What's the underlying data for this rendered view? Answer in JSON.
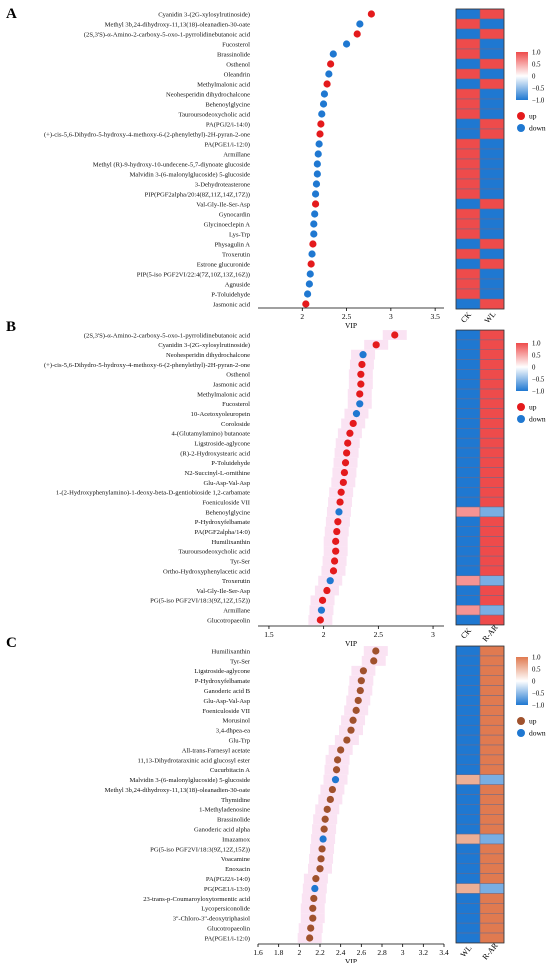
{
  "chart_data": [
    {
      "type": "scatter",
      "panel_label": "A",
      "xlabel": "VIP",
      "xlim": [
        1.5,
        3.6
      ],
      "xticks": [
        2,
        2.5,
        3,
        3.5
      ],
      "heat_columns": [
        "CK",
        "WL"
      ],
      "legend_labels": [
        "up",
        "down"
      ],
      "up_color": "#e41a1c",
      "down_color": "#1f78d1",
      "highlight": false,
      "colorbar": {
        "ticks": [
          "1.0",
          "0.5",
          "0",
          "−0.5",
          "−1.0"
        ],
        "top": "#ee4b4b",
        "mid": "#ffffff",
        "bottom": "#1f78d1"
      },
      "points": [
        {
          "name": "Cyanidin 3-(2G-xylosylrutinoside)",
          "vip": 2.78,
          "dir": "up",
          "heat": [
            -1,
            1
          ]
        },
        {
          "name": "Methyl 3b,24-dihydroxy-11,13(18)-oleanadien-30-oate",
          "vip": 2.65,
          "dir": "down",
          "heat": [
            1,
            -1
          ]
        },
        {
          "name": "(2S,3'S)-α-Amino-2-carboxy-5-oxo-1-pyrrolidinebutanoic acid",
          "vip": 2.62,
          "dir": "up",
          "heat": [
            -1,
            1
          ]
        },
        {
          "name": "Fucosterol",
          "vip": 2.5,
          "dir": "down",
          "heat": [
            1,
            -1
          ]
        },
        {
          "name": "Brassinolide",
          "vip": 2.35,
          "dir": "down",
          "heat": [
            1,
            -1
          ]
        },
        {
          "name": "Osthenol",
          "vip": 2.32,
          "dir": "up",
          "heat": [
            -1,
            1
          ]
        },
        {
          "name": "Oleandrin",
          "vip": 2.3,
          "dir": "down",
          "heat": [
            1,
            -1
          ]
        },
        {
          "name": "Methylmalonic acid",
          "vip": 2.28,
          "dir": "up",
          "heat": [
            -1,
            1
          ]
        },
        {
          "name": "Neohesperidin dihydrochalcone",
          "vip": 2.25,
          "dir": "down",
          "heat": [
            1,
            -1
          ]
        },
        {
          "name": "Behenoylglycine",
          "vip": 2.24,
          "dir": "down",
          "heat": [
            1,
            -1
          ]
        },
        {
          "name": "Tauroursodeoxycholic acid",
          "vip": 2.22,
          "dir": "down",
          "heat": [
            1,
            -1
          ]
        },
        {
          "name": "PA(PGJ2/i-14:0)",
          "vip": 2.21,
          "dir": "up",
          "heat": [
            -1,
            1
          ]
        },
        {
          "name": "(+)-cis-5,6-Dihydro-5-hydroxy-4-methoxy-6-(2-phenylethyl)-2H-pyran-2-one",
          "vip": 2.2,
          "dir": "up",
          "heat": [
            -1,
            1
          ]
        },
        {
          "name": "PA(PGE1/i-12:0)",
          "vip": 2.19,
          "dir": "down",
          "heat": [
            1,
            -1
          ]
        },
        {
          "name": "Armillane",
          "vip": 2.18,
          "dir": "down",
          "heat": [
            1,
            -1
          ]
        },
        {
          "name": "Methyl (R)-9-hydroxy-10-undecene-5,7-diynoate glucoside",
          "vip": 2.17,
          "dir": "down",
          "heat": [
            1,
            -1
          ]
        },
        {
          "name": "Malvidin 3-(6-malonylglucoside) 5-glucoside",
          "vip": 2.17,
          "dir": "down",
          "heat": [
            1,
            -1
          ]
        },
        {
          "name": "3-Dehydroteasterone",
          "vip": 2.16,
          "dir": "down",
          "heat": [
            1,
            -1
          ]
        },
        {
          "name": "PIP(PGF2alpha/20:4(8Z,11Z,14Z,17Z))",
          "vip": 2.15,
          "dir": "down",
          "heat": [
            1,
            -1
          ]
        },
        {
          "name": "Val-Gly-Ile-Ser-Asp",
          "vip": 2.15,
          "dir": "up",
          "heat": [
            -1,
            1
          ]
        },
        {
          "name": "Gynocardin",
          "vip": 2.14,
          "dir": "down",
          "heat": [
            1,
            -1
          ]
        },
        {
          "name": "Glycinoeclepin A",
          "vip": 2.13,
          "dir": "down",
          "heat": [
            1,
            -1
          ]
        },
        {
          "name": "Lys-Trp",
          "vip": 2.13,
          "dir": "down",
          "heat": [
            1,
            -1
          ]
        },
        {
          "name": "Physagulin A",
          "vip": 2.12,
          "dir": "up",
          "heat": [
            -1,
            1
          ]
        },
        {
          "name": "Troxerutin",
          "vip": 2.11,
          "dir": "down",
          "heat": [
            1,
            -1
          ]
        },
        {
          "name": "Estrone glucuronide",
          "vip": 2.1,
          "dir": "up",
          "heat": [
            -1,
            1
          ]
        },
        {
          "name": "PIP(5-iso PGF2VI/22:4(7Z,10Z,13Z,16Z))",
          "vip": 2.09,
          "dir": "down",
          "heat": [
            1,
            -1
          ]
        },
        {
          "name": "Agnuside",
          "vip": 2.08,
          "dir": "down",
          "heat": [
            1,
            -1
          ]
        },
        {
          "name": "P-Toluidehyde",
          "vip": 2.06,
          "dir": "down",
          "heat": [
            1,
            -1
          ]
        },
        {
          "name": "Jasmonic acid",
          "vip": 2.04,
          "dir": "up",
          "heat": [
            -1,
            1
          ]
        }
      ]
    },
    {
      "type": "scatter",
      "panel_label": "B",
      "xlabel": "VIP",
      "xlim": [
        1.4,
        3.1
      ],
      "xticks": [
        1.5,
        2,
        2.5,
        3
      ],
      "heat_columns": [
        "CK",
        "R-AR"
      ],
      "legend_labels": [
        "up",
        "down"
      ],
      "up_color": "#e41a1c",
      "down_color": "#1f78d1",
      "highlight": true,
      "colorbar": {
        "ticks": [
          "1.0",
          "0.5",
          "0",
          "−0.5",
          "−1.0"
        ],
        "top": "#ee4b4b",
        "mid": "#ffffff",
        "bottom": "#1f78d1"
      },
      "points": [
        {
          "name": "(2S,3'S)-α-Amino-2-carboxy-5-oxo-1-pyrrolidinebutanoic acid",
          "vip": 2.65,
          "dir": "up",
          "heat": [
            -1,
            1
          ]
        },
        {
          "name": "Cyanidin 3-(2G-xylosylrutinoside)",
          "vip": 2.48,
          "dir": "up",
          "heat": [
            -1,
            1
          ]
        },
        {
          "name": "Neohesperidin dihydrochalcone",
          "vip": 2.36,
          "dir": "down",
          "heat": [
            -1,
            1
          ]
        },
        {
          "name": "(+)-cis-5,6-Dihydro-5-hydroxy-4-methoxy-6-(2-phenylethyl)-2H-pyran-2-one",
          "vip": 2.35,
          "dir": "up",
          "heat": [
            -1,
            1
          ]
        },
        {
          "name": "Osthenol",
          "vip": 2.34,
          "dir": "up",
          "heat": [
            -1,
            1
          ]
        },
        {
          "name": "Jasmonic acid",
          "vip": 2.34,
          "dir": "up",
          "heat": [
            -1,
            1
          ]
        },
        {
          "name": "Methylmalonic acid",
          "vip": 2.33,
          "dir": "up",
          "heat": [
            -1,
            1
          ]
        },
        {
          "name": "Fucosterol",
          "vip": 2.33,
          "dir": "down",
          "heat": [
            -1,
            1
          ]
        },
        {
          "name": "10-Acetoxyoleuropein",
          "vip": 2.3,
          "dir": "down",
          "heat": [
            -1,
            1
          ]
        },
        {
          "name": "Coroloside",
          "vip": 2.27,
          "dir": "up",
          "heat": [
            -1,
            1
          ]
        },
        {
          "name": "4-(Glutamylamino) butanoate",
          "vip": 2.24,
          "dir": "up",
          "heat": [
            -1,
            1
          ]
        },
        {
          "name": "Ligstroside-aglycone",
          "vip": 2.22,
          "dir": "up",
          "heat": [
            -1,
            1
          ]
        },
        {
          "name": "(R)-2-Hydroxystearic acid",
          "vip": 2.21,
          "dir": "up",
          "heat": [
            -1,
            1
          ]
        },
        {
          "name": "P-Toluidehyde",
          "vip": 2.2,
          "dir": "up",
          "heat": [
            -1,
            1
          ]
        },
        {
          "name": "N2-Succinyl-L-ornithine",
          "vip": 2.19,
          "dir": "up",
          "heat": [
            -1,
            1
          ]
        },
        {
          "name": "Glu-Asp-Val-Asp",
          "vip": 2.18,
          "dir": "up",
          "heat": [
            -1,
            1
          ]
        },
        {
          "name": "1-(2-Hydroxyphenylamino)-1-deoxy-beta-D-gentiobioside 1,2-carbamate",
          "vip": 2.16,
          "dir": "up",
          "heat": [
            -1,
            1
          ]
        },
        {
          "name": "Foeniculoside VII",
          "vip": 2.15,
          "dir": "up",
          "heat": [
            -1,
            1
          ]
        },
        {
          "name": "Behenoylglycine",
          "vip": 2.14,
          "dir": "down",
          "heat": [
            0.6,
            -0.6
          ]
        },
        {
          "name": "P-Hydroxyfelbamate",
          "vip": 2.13,
          "dir": "up",
          "heat": [
            -1,
            1
          ]
        },
        {
          "name": "PA(PGF2alpha/14:0)",
          "vip": 2.12,
          "dir": "up",
          "heat": [
            -1,
            1
          ]
        },
        {
          "name": "Humilixanthin",
          "vip": 2.11,
          "dir": "up",
          "heat": [
            -1,
            1
          ]
        },
        {
          "name": "Tauroursodeoxycholic acid",
          "vip": 2.11,
          "dir": "up",
          "heat": [
            -1,
            1
          ]
        },
        {
          "name": "Tyr-Ser",
          "vip": 2.1,
          "dir": "up",
          "heat": [
            -1,
            1
          ]
        },
        {
          "name": "Ortho-Hydroxyphenylacetic acid",
          "vip": 2.09,
          "dir": "up",
          "heat": [
            -1,
            1
          ]
        },
        {
          "name": "Troxerutin",
          "vip": 2.06,
          "dir": "down",
          "heat": [
            0.6,
            -0.6
          ]
        },
        {
          "name": "Val-Gly-Ile-Ser-Asp",
          "vip": 2.03,
          "dir": "up",
          "heat": [
            -1,
            1
          ]
        },
        {
          "name": "PG(5-iso PGF2VI/18:3(9Z,12Z,15Z))",
          "vip": 1.99,
          "dir": "up",
          "heat": [
            -1,
            1
          ]
        },
        {
          "name": "Armillane",
          "vip": 1.98,
          "dir": "down",
          "heat": [
            0.6,
            -0.6
          ]
        },
        {
          "name": "Glucotropaeolin",
          "vip": 1.97,
          "dir": "up",
          "heat": [
            -1,
            1
          ]
        }
      ]
    },
    {
      "type": "scatter",
      "panel_label": "C",
      "xlabel": "VIP",
      "xlim": [
        1.6,
        3.4
      ],
      "xticks": [
        1.6,
        1.8,
        2.0,
        2.2,
        2.4,
        2.6,
        2.8,
        3.0,
        3.2,
        3.4
      ],
      "heat_columns": [
        "WL",
        "R-AR"
      ],
      "legend_labels": [
        "up",
        "down"
      ],
      "up_color": "#a0522d",
      "down_color": "#1f78d1",
      "highlight": true,
      "colorbar": {
        "ticks": [
          "1.0",
          "0.5",
          "0",
          "−0.5",
          "−1.0"
        ],
        "top": "#e07a50",
        "mid": "#ffffff",
        "bottom": "#1f78d1"
      },
      "points": [
        {
          "name": "Humilixanthin",
          "vip": 2.74,
          "dir": "up",
          "heat": [
            -1,
            1
          ]
        },
        {
          "name": "Tyr-Ser",
          "vip": 2.72,
          "dir": "up",
          "heat": [
            -1,
            1
          ]
        },
        {
          "name": "Ligstroside-aglycone",
          "vip": 2.62,
          "dir": "up",
          "heat": [
            -1,
            1
          ]
        },
        {
          "name": "P-Hydroxyfelbamate",
          "vip": 2.6,
          "dir": "up",
          "heat": [
            -1,
            1
          ]
        },
        {
          "name": "Ganoderic acid B",
          "vip": 2.59,
          "dir": "up",
          "heat": [
            -1,
            1
          ]
        },
        {
          "name": "Glu-Asp-Val-Asp",
          "vip": 2.57,
          "dir": "up",
          "heat": [
            -1,
            1
          ]
        },
        {
          "name": "Foeniculoside VII",
          "vip": 2.55,
          "dir": "up",
          "heat": [
            -1,
            1
          ]
        },
        {
          "name": "Morusinol",
          "vip": 2.52,
          "dir": "up",
          "heat": [
            -1,
            1
          ]
        },
        {
          "name": "3,4-dhpea-ea",
          "vip": 2.5,
          "dir": "up",
          "heat": [
            -1,
            1
          ]
        },
        {
          "name": "Glu-Trp",
          "vip": 2.46,
          "dir": "up",
          "heat": [
            -1,
            1
          ]
        },
        {
          "name": "All-trans-Farnesyl acetate",
          "vip": 2.4,
          "dir": "up",
          "heat": [
            -1,
            1
          ]
        },
        {
          "name": "11,13-Dihydrotaraxinic acid glucosyl ester",
          "vip": 2.37,
          "dir": "up",
          "heat": [
            -1,
            1
          ]
        },
        {
          "name": "Cucurbitacin A",
          "vip": 2.36,
          "dir": "up",
          "heat": [
            -1,
            1
          ]
        },
        {
          "name": "Malvidin 3-(6-malonylglucoside) 5-glucoside",
          "vip": 2.35,
          "dir": "down",
          "heat": [
            0.6,
            -0.6
          ]
        },
        {
          "name": "Methyl 3b,24-dihydroxy-11,13(18)-oleanadien-30-oate",
          "vip": 2.32,
          "dir": "up",
          "heat": [
            -1,
            1
          ]
        },
        {
          "name": "Thymidine",
          "vip": 2.3,
          "dir": "up",
          "heat": [
            -1,
            1
          ]
        },
        {
          "name": "1-Methyladenosine",
          "vip": 2.27,
          "dir": "up",
          "heat": [
            -1,
            1
          ]
        },
        {
          "name": "Brassinolide",
          "vip": 2.25,
          "dir": "up",
          "heat": [
            -1,
            1
          ]
        },
        {
          "name": "Ganoderic acid alpha",
          "vip": 2.24,
          "dir": "up",
          "heat": [
            -1,
            1
          ]
        },
        {
          "name": "Imazamox",
          "vip": 2.23,
          "dir": "down",
          "heat": [
            0.6,
            -0.6
          ]
        },
        {
          "name": "PG(5-iso PGF2VI/18:3(9Z,12Z,15Z))",
          "vip": 2.22,
          "dir": "up",
          "heat": [
            -1,
            1
          ]
        },
        {
          "name": "Voacamine",
          "vip": 2.21,
          "dir": "up",
          "heat": [
            -1,
            1
          ]
        },
        {
          "name": "Enoxacin",
          "vip": 2.2,
          "dir": "up",
          "heat": [
            -1,
            1
          ]
        },
        {
          "name": "PA(PGJ2/i-14:0)",
          "vip": 2.16,
          "dir": "up",
          "heat": [
            -1,
            1
          ]
        },
        {
          "name": "PG(PGE1/i-13:0)",
          "vip": 2.15,
          "dir": "down",
          "heat": [
            0.6,
            -0.6
          ]
        },
        {
          "name": "23-trans-p-Coumaroyloxytormentic acid",
          "vip": 2.14,
          "dir": "up",
          "heat": [
            -1,
            1
          ]
        },
        {
          "name": "Lycopersiconolide",
          "vip": 2.13,
          "dir": "up",
          "heat": [
            -1,
            1
          ]
        },
        {
          "name": "3''-Chloro-3''-deoxytriphasiol",
          "vip": 2.13,
          "dir": "up",
          "heat": [
            -1,
            1
          ]
        },
        {
          "name": "Glucotropaeolin",
          "vip": 2.11,
          "dir": "up",
          "heat": [
            -1,
            1
          ]
        },
        {
          "name": "PA(PGE1/i-12:0)",
          "vip": 2.1,
          "dir": "up",
          "heat": [
            -1,
            1
          ]
        }
      ]
    }
  ]
}
